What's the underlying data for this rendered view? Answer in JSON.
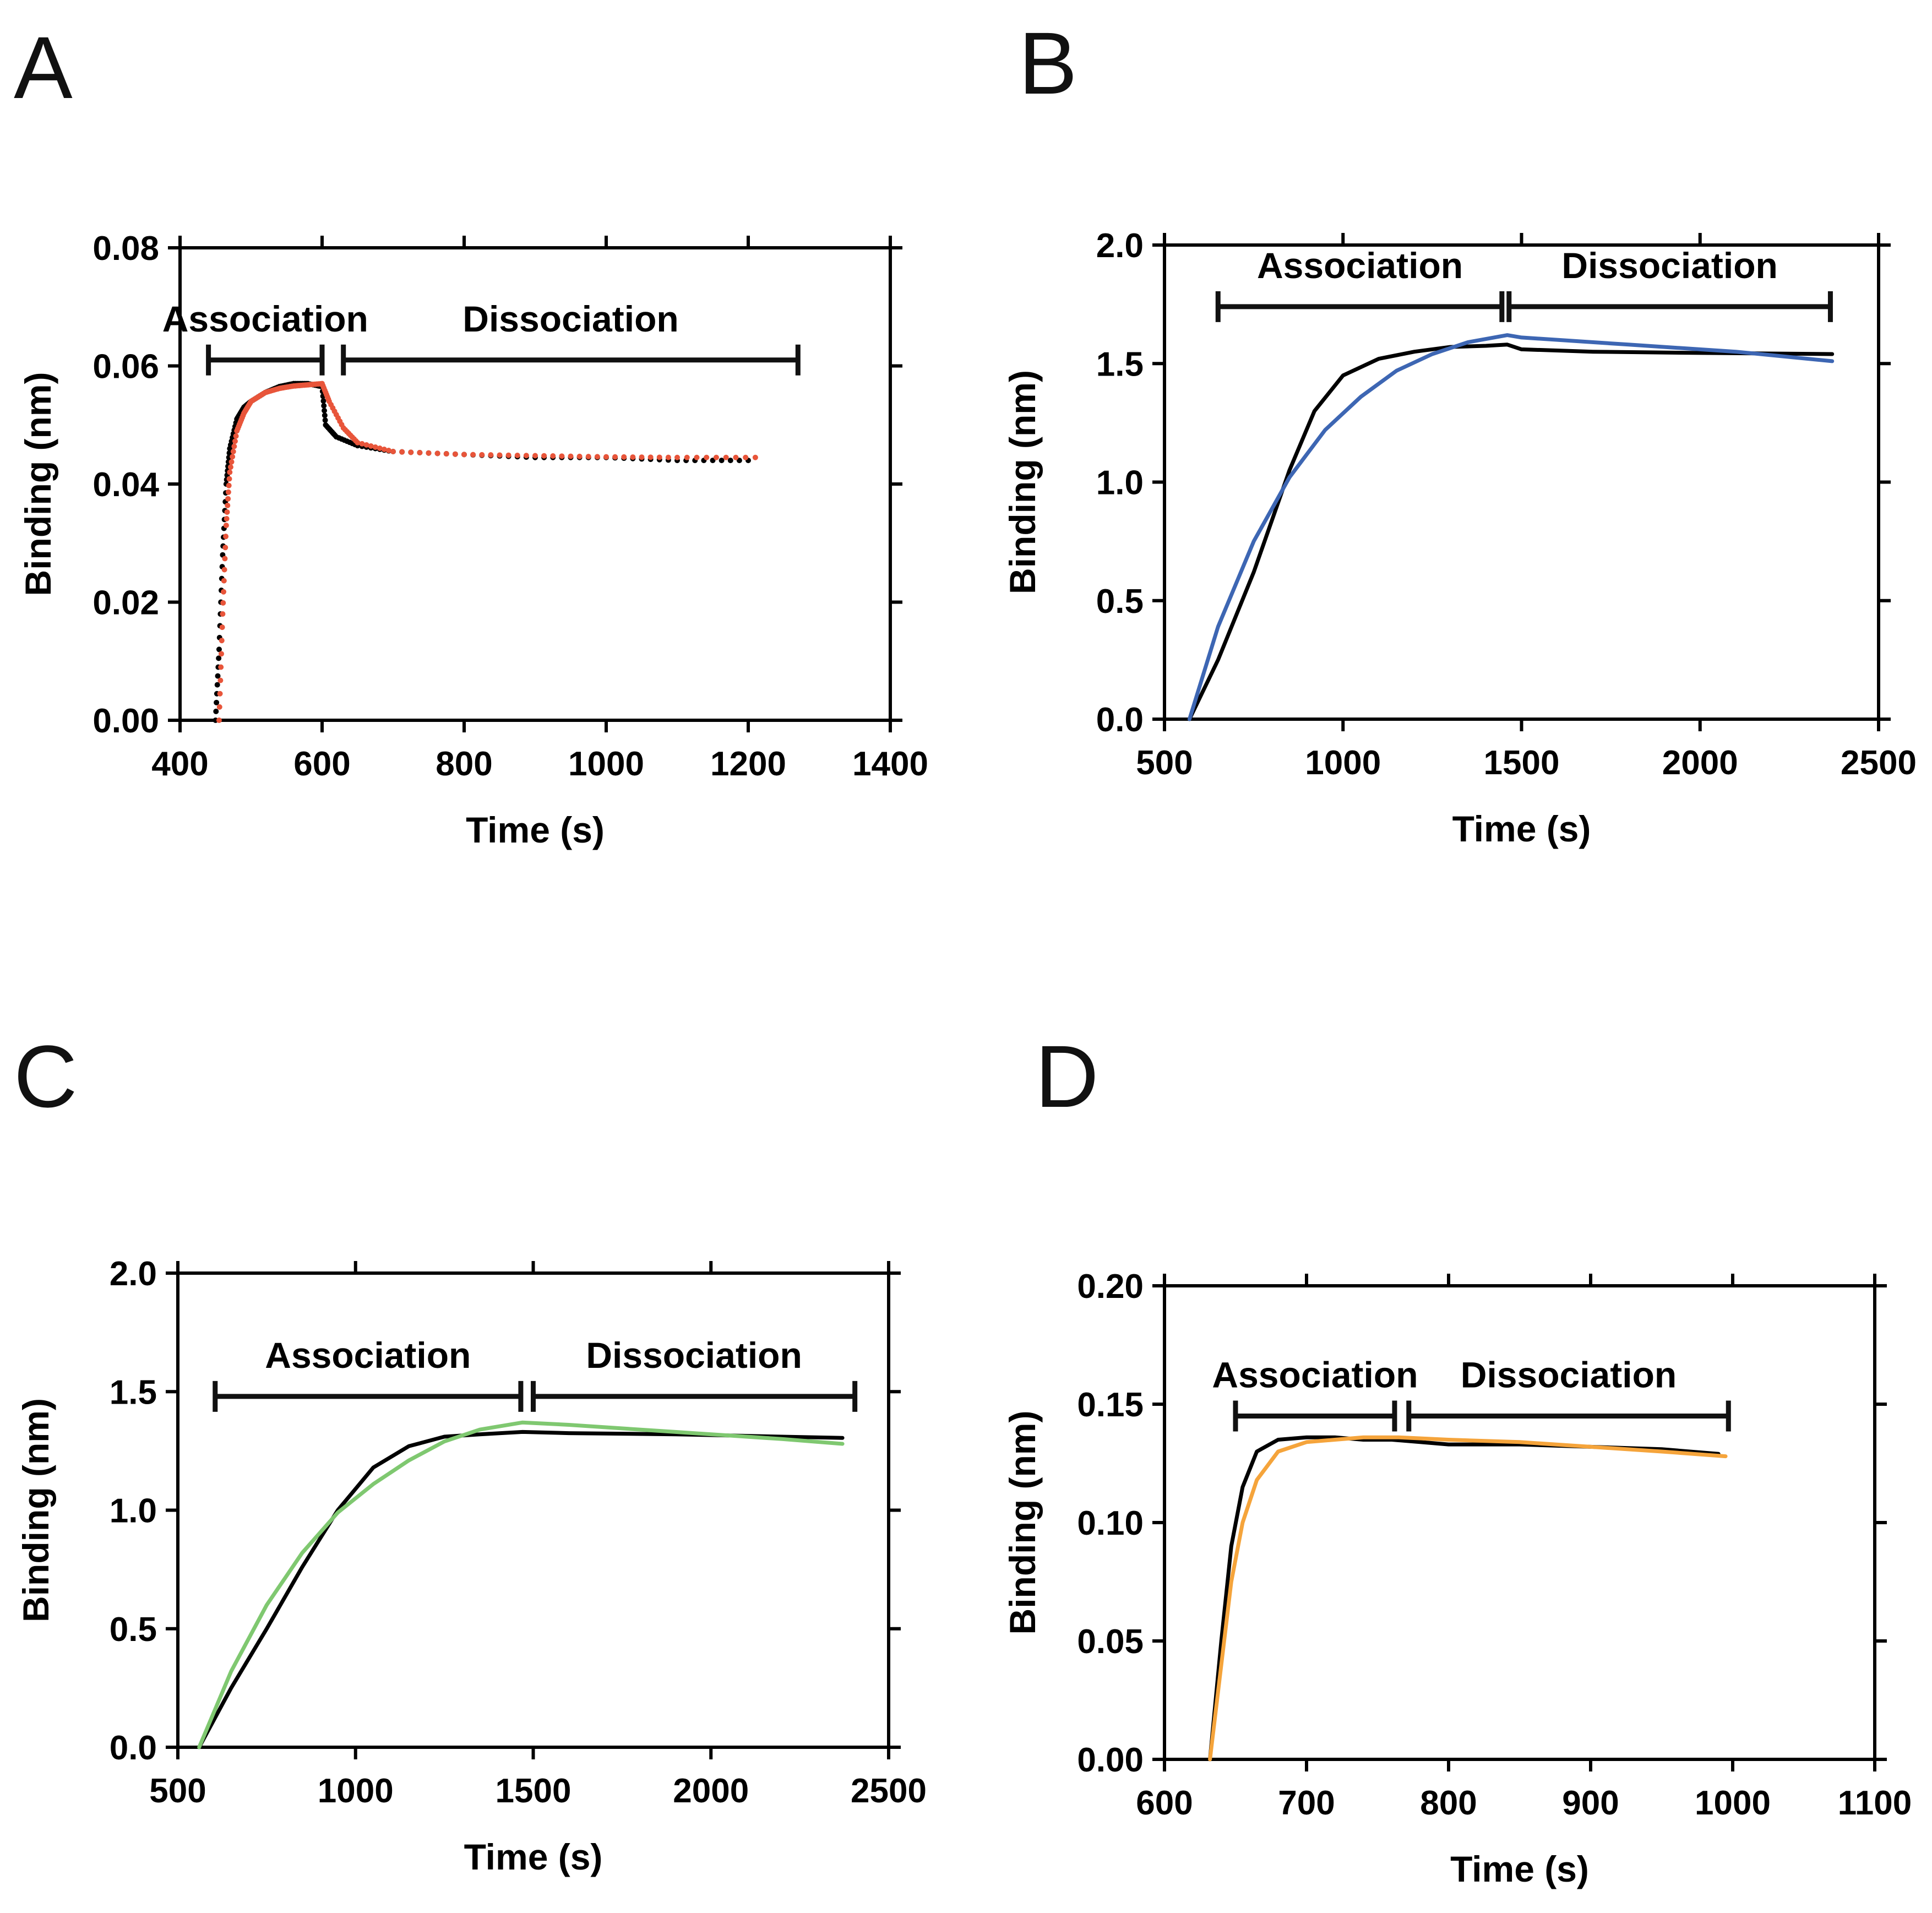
{
  "chart_data": [
    {
      "panel": "A",
      "type": "scatter",
      "xlabel": "Time (s)",
      "ylabel": "Binding (nm)",
      "xlim": [
        400,
        1400
      ],
      "ylim": [
        0.0,
        0.08
      ],
      "xticks": [
        "400",
        "600",
        "800",
        "1000",
        "1200",
        "1400"
      ],
      "yticks": [
        "0.00",
        "0.02",
        "0.04",
        "0.06",
        "0.08"
      ],
      "phases": [
        {
          "label": "Association",
          "x_start": 440,
          "x_end": 600,
          "y": 0.061
        },
        {
          "label": "Dissociation",
          "x_start": 630,
          "x_end": 1270,
          "y": 0.061
        }
      ],
      "series": [
        {
          "kind": "data",
          "color": "#000000",
          "style": "points",
          "x": [
            450,
            455,
            460,
            465,
            470,
            480,
            490,
            500,
            520,
            540,
            560,
            580,
            600,
            605,
            620,
            650,
            700,
            800,
            900,
            1000,
            1100,
            1200
          ],
          "y": [
            0.0,
            0.012,
            0.028,
            0.04,
            0.046,
            0.051,
            0.053,
            0.054,
            0.0555,
            0.0565,
            0.057,
            0.057,
            0.0565,
            0.05,
            0.048,
            0.0465,
            0.0455,
            0.045,
            0.0445,
            0.0445,
            0.044,
            0.044
          ]
        },
        {
          "kind": "fit",
          "color": "#e8553a",
          "style": "points",
          "x": [
            455,
            460,
            465,
            470,
            480,
            490,
            500,
            520,
            540,
            560,
            580,
            600,
            610,
            630,
            650,
            700,
            800,
            900,
            1000,
            1100,
            1210
          ],
          "y": [
            0.0,
            0.018,
            0.033,
            0.042,
            0.049,
            0.052,
            0.054,
            0.0555,
            0.0562,
            0.0566,
            0.0568,
            0.057,
            0.054,
            0.0495,
            0.047,
            0.0455,
            0.045,
            0.0448,
            0.0446,
            0.0445,
            0.0445
          ]
        }
      ]
    },
    {
      "panel": "B",
      "type": "line",
      "xlabel": "Time (s)",
      "ylabel": "Binding (nm)",
      "xlim": [
        500,
        2500
      ],
      "ylim": [
        0.0,
        2.0
      ],
      "xticks": [
        "500",
        "1000",
        "1500",
        "2000",
        "2500"
      ],
      "yticks": [
        "0.0",
        "0.5",
        "1.0",
        "1.5",
        "2.0"
      ],
      "phases": [
        {
          "label": "Association",
          "x_start": 650,
          "x_end": 1445,
          "y": 1.74
        },
        {
          "label": "Dissociation",
          "x_start": 1465,
          "x_end": 2365,
          "y": 1.74
        }
      ],
      "series": [
        {
          "kind": "data",
          "color": "#000000",
          "x": [
            570,
            650,
            750,
            850,
            920,
            1000,
            1100,
            1200,
            1300,
            1400,
            1460,
            1500,
            1700,
            2000,
            2370
          ],
          "y": [
            0.0,
            0.25,
            0.62,
            1.05,
            1.3,
            1.45,
            1.52,
            1.55,
            1.57,
            1.575,
            1.58,
            1.56,
            1.55,
            1.545,
            1.54
          ]
        },
        {
          "kind": "fit",
          "color": "#3d66b3",
          "x": [
            570,
            650,
            750,
            850,
            950,
            1050,
            1150,
            1250,
            1350,
            1460,
            1500,
            1800,
            2100,
            2370
          ],
          "y": [
            0.0,
            0.39,
            0.75,
            1.02,
            1.22,
            1.36,
            1.47,
            1.54,
            1.59,
            1.62,
            1.61,
            1.58,
            1.55,
            1.51
          ]
        }
      ]
    },
    {
      "panel": "C",
      "type": "line",
      "xlabel": "Time (s)",
      "ylabel": "Binding (nm)",
      "xlim": [
        500,
        2500
      ],
      "ylim": [
        0.0,
        2.0
      ],
      "xticks": [
        "500",
        "1000",
        "1500",
        "2000",
        "2500"
      ],
      "yticks": [
        "0.0",
        "0.5",
        "1.0",
        "1.5",
        "2.0"
      ],
      "phases": [
        {
          "label": "Association",
          "x_start": 605,
          "x_end": 1465,
          "y": 1.48
        },
        {
          "label": "Dissociation",
          "x_start": 1500,
          "x_end": 2405,
          "y": 1.48
        }
      ],
      "series": [
        {
          "kind": "data",
          "color": "#000000",
          "x": [
            560,
            650,
            750,
            850,
            950,
            1050,
            1150,
            1250,
            1350,
            1470,
            1600,
            1900,
            2200,
            2370
          ],
          "y": [
            0.0,
            0.25,
            0.5,
            0.76,
            1.0,
            1.18,
            1.27,
            1.31,
            1.32,
            1.33,
            1.325,
            1.32,
            1.31,
            1.305
          ]
        },
        {
          "kind": "fit",
          "color": "#7fc870",
          "x": [
            560,
            650,
            750,
            850,
            950,
            1050,
            1150,
            1250,
            1350,
            1470,
            1600,
            1900,
            2200,
            2370
          ],
          "y": [
            0.0,
            0.32,
            0.6,
            0.82,
            0.99,
            1.11,
            1.21,
            1.29,
            1.34,
            1.37,
            1.36,
            1.33,
            1.3,
            1.28
          ]
        }
      ]
    },
    {
      "panel": "D",
      "type": "line",
      "xlabel": "Time (s)",
      "ylabel": "Binding (nm)",
      "xlim": [
        600,
        1100
      ],
      "ylim": [
        0.0,
        0.2
      ],
      "xticks": [
        "600",
        "700",
        "800",
        "900",
        "1000",
        "1100"
      ],
      "yticks": [
        "0.00",
        "0.05",
        "0.10",
        "0.15",
        "0.20"
      ],
      "phases": [
        {
          "label": "Association",
          "x_start": 650,
          "x_end": 762,
          "y": 0.145
        },
        {
          "label": "Dissociation",
          "x_start": 772,
          "x_end": 997,
          "y": 0.145
        }
      ],
      "series": [
        {
          "kind": "data",
          "color": "#000000",
          "x": [
            632,
            640,
            647,
            655,
            665,
            680,
            700,
            720,
            740,
            760,
            780,
            800,
            850,
            900,
            950,
            990
          ],
          "y": [
            0.0,
            0.05,
            0.09,
            0.115,
            0.13,
            0.135,
            0.136,
            0.136,
            0.135,
            0.135,
            0.134,
            0.133,
            0.133,
            0.132,
            0.131,
            0.129
          ]
        },
        {
          "kind": "fit",
          "color": "#f5a43b",
          "x": [
            632,
            640,
            647,
            655,
            665,
            680,
            700,
            720,
            740,
            765,
            800,
            850,
            900,
            950,
            995
          ],
          "y": [
            0.0,
            0.04,
            0.075,
            0.1,
            0.118,
            0.13,
            0.134,
            0.135,
            0.136,
            0.136,
            0.135,
            0.134,
            0.132,
            0.13,
            0.128
          ]
        }
      ]
    }
  ]
}
